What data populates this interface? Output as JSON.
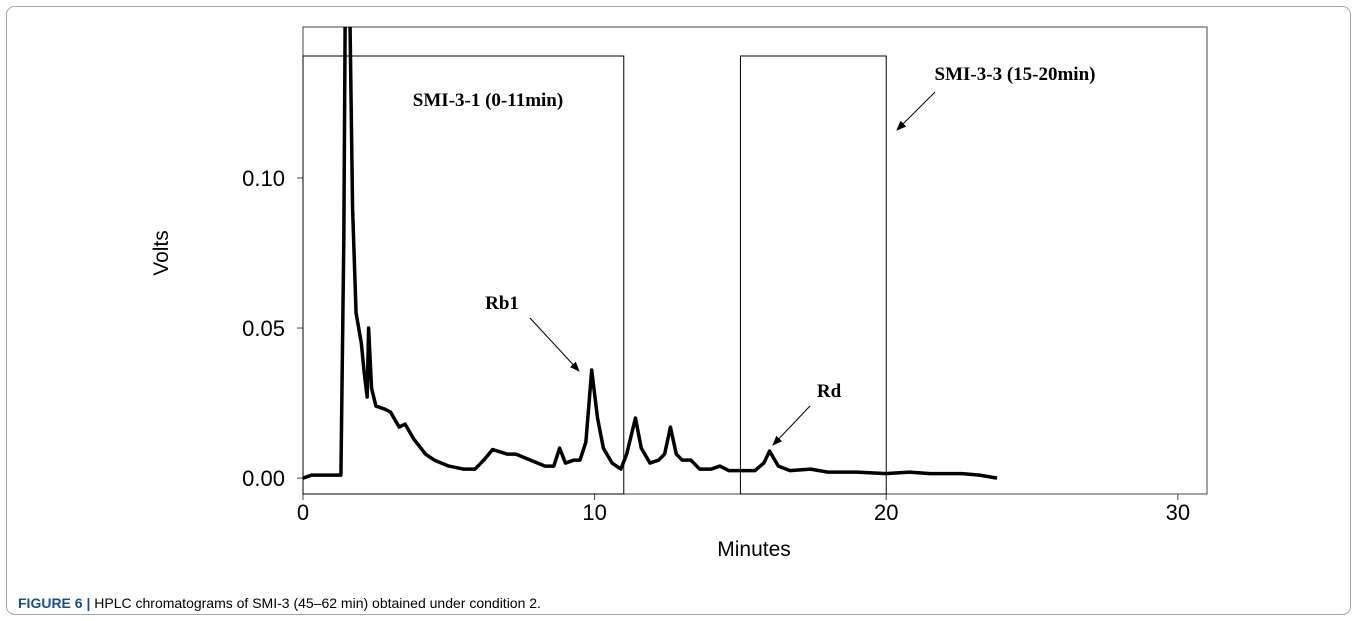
{
  "chart_data": {
    "type": "line",
    "x_label": "Minutes",
    "y_label": "Volts",
    "caption_label": "FIGURE 6 |",
    "caption": "HPLC chromatograms of SMI-3 (45–62 min) obtained under condition 2.",
    "x": [
      0,
      0.3,
      1.3,
      1.4,
      1.45,
      1.6,
      1.7,
      1.82,
      2.0,
      2.1,
      2.2,
      2.25,
      2.35,
      2.5,
      2.8,
      3.0,
      3.3,
      3.5,
      3.8,
      4.2,
      4.5,
      5,
      5.5,
      5.9,
      6.2,
      6.5,
      7,
      7.3,
      7.8,
      8.3,
      8.6,
      8.8,
      9.0,
      9.3,
      9.5,
      9.7,
      9.9,
      10.1,
      10.3,
      10.6,
      10.9,
      11.1,
      11.4,
      11.6,
      11.9,
      12.2,
      12.4,
      12.6,
      12.8,
      13.0,
      13.3,
      13.6,
      14.0,
      14.3,
      14.6,
      15,
      15.5,
      15.8,
      16,
      16.3,
      16.7,
      17.4,
      18,
      19,
      20,
      20.8,
      21.5,
      22.6,
      23.2,
      23.8
    ],
    "values": [
      0,
      0.001,
      0.001,
      0.08,
      0.16,
      0.16,
      0.09,
      0.055,
      0.045,
      0.035,
      0.027,
      0.05,
      0.03,
      0.024,
      0.023,
      0.022,
      0.017,
      0.018,
      0.013,
      0.008,
      0.006,
      0.004,
      0.003,
      0.003,
      0.006,
      0.0095,
      0.008,
      0.008,
      0.006,
      0.004,
      0.004,
      0.01,
      0.005,
      0.006,
      0.006,
      0.012,
      0.036,
      0.02,
      0.01,
      0.005,
      0.003,
      0.008,
      0.02,
      0.01,
      0.005,
      0.006,
      0.008,
      0.017,
      0.008,
      0.006,
      0.006,
      0.003,
      0.003,
      0.004,
      0.0025,
      0.0025,
      0.0025,
      0.005,
      0.009,
      0.004,
      0.0025,
      0.003,
      0.002,
      0.002,
      0.0015,
      0.002,
      0.0015,
      0.0015,
      0.001,
      0
    ],
    "color": "#000000",
    "xlim": [
      0,
      31
    ],
    "xticks": [
      0,
      10,
      20,
      30
    ],
    "ylim": [
      -0.0053,
      0.1503
    ],
    "yticks": [
      {
        "value": 0,
        "label": "0.00"
      },
      {
        "value": 0.05,
        "label": "0.05"
      },
      {
        "value": 0.1,
        "label": "0.10"
      }
    ],
    "regions": [
      {
        "label": "SMI-3-1 (0-11min)",
        "x": [
          0,
          11
        ]
      },
      {
        "label": "SMI-3-3 (15-20min)",
        "x": [
          15,
          20
        ]
      }
    ],
    "annotations": [
      "Rb1",
      "Rd"
    ]
  }
}
